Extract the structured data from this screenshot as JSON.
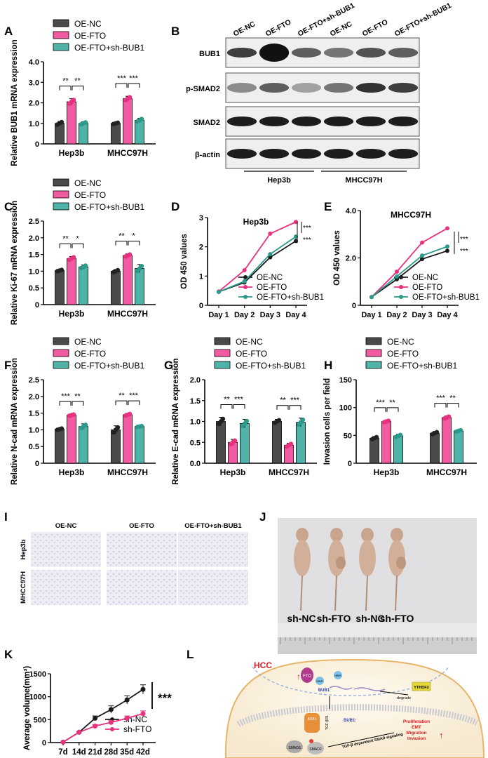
{
  "panels": {
    "A": {
      "letter": "A",
      "ylabel": "Relative BUB1 mRNA expression",
      "legend": [
        "OE-NC",
        "OE-FTO",
        "OE-FTO+sh-BUB1"
      ],
      "groups": [
        "Hep3b",
        "MHCC97H"
      ],
      "values": [
        [
          1.0,
          2.05,
          1.0
        ],
        [
          1.0,
          2.2,
          1.15
        ]
      ],
      "errors": [
        [
          0.1,
          0.15,
          0.08
        ],
        [
          0.05,
          0.12,
          0.1
        ]
      ],
      "ylim": [
        0,
        4
      ],
      "yticks": [
        "0",
        "1.0",
        "2.0",
        "3.0",
        "4.0"
      ],
      "sig": [
        [
          "**",
          "**"
        ],
        [
          "***",
          "***"
        ]
      ]
    },
    "B": {
      "letter": "B",
      "columns": [
        "OE-NC",
        "OE-FTO",
        "OE-FTO+sh-BUB1",
        "OE-NC",
        "OE-FTO",
        "OE-FTO+sh-BUB1"
      ],
      "rows": [
        "BUB1",
        "p-SMAD2",
        "SMAD2",
        "β-actin"
      ],
      "groups": [
        "Hep3b",
        "MHCC97H"
      ]
    },
    "C": {
      "letter": "C",
      "ylabel": "Relative Ki-67 mRNA expression",
      "legend": [
        "OE-NC",
        "OE-FTO",
        "OE-FTO+sh-BUB1"
      ],
      "groups": [
        "Hep3b",
        "MHCC97H"
      ],
      "values": [
        [
          1.02,
          1.38,
          1.13
        ],
        [
          1.0,
          1.47,
          1.08
        ]
      ],
      "errors": [
        [
          0.03,
          0.06,
          0.06
        ],
        [
          0.05,
          0.05,
          0.12
        ]
      ],
      "ylim": [
        0,
        2.5
      ],
      "yticks": [
        "0",
        "0.5",
        "1.0",
        "1.5",
        "2.0",
        "2.5"
      ],
      "sig": [
        [
          "**",
          "*"
        ],
        [
          "**",
          "*"
        ]
      ]
    },
    "D": {
      "letter": "D",
      "title": "Hep3b",
      "ylabel": "OD 450 values",
      "xticks": [
        "Day 1",
        "Day 2",
        "Day 3",
        "Day 4"
      ],
      "ylim": [
        0,
        3
      ],
      "yticks": [
        "0",
        "1",
        "2",
        "3"
      ],
      "series": [
        {
          "name": "OE-NC",
          "values": [
            0.46,
            0.78,
            1.64,
            2.2
          ]
        },
        {
          "name": "OE-FTO",
          "values": [
            0.47,
            1.2,
            2.45,
            2.85
          ]
        },
        {
          "name": "OE-FTO+sh-BUB1",
          "values": [
            0.46,
            0.82,
            1.75,
            2.35
          ]
        }
      ],
      "sig": [
        "***",
        "***"
      ]
    },
    "E": {
      "letter": "E",
      "title": "MHCC97H",
      "ylabel": "OD 450 values",
      "xticks": [
        "Day 1",
        "Day 2",
        "Day 3",
        "Day 4"
      ],
      "ylim": [
        0,
        4
      ],
      "yticks": [
        "0",
        "2.0",
        "4.0"
      ],
      "series": [
        {
          "name": "OE-NC",
          "values": [
            0.35,
            1.1,
            1.95,
            2.3
          ]
        },
        {
          "name": "OE-FTO",
          "values": [
            0.35,
            1.42,
            2.65,
            3.25
          ]
        },
        {
          "name": "OE-FTO+sh-BUB1",
          "values": [
            0.35,
            1.22,
            2.1,
            2.48
          ]
        }
      ],
      "sig": [
        "***",
        "***"
      ]
    },
    "F": {
      "letter": "F",
      "ylabel": "Relative N-cad mRNA expression",
      "legend": [
        "OE-NC",
        "OE-FTO",
        "OE-FTO+sh-BUB1"
      ],
      "groups": [
        "Hep3b",
        "MHCC97H"
      ],
      "values": [
        [
          1.02,
          1.44,
          1.1
        ],
        [
          1.0,
          1.45,
          1.1
        ]
      ],
      "errors": [
        [
          0.03,
          0.03,
          0.08
        ],
        [
          0.12,
          0.04,
          0.02
        ]
      ],
      "ylim": [
        0,
        2.5
      ],
      "yticks": [
        "0",
        "0.5",
        "1.0",
        "1.5",
        "2.0",
        "2.5"
      ],
      "sig": [
        [
          "***",
          "**"
        ],
        [
          "**",
          "***"
        ]
      ]
    },
    "G": {
      "letter": "G",
      "ylabel": "Relative E-cad mRNA expression",
      "legend": [
        "OE-NC",
        "OE-FTO",
        "OE-FTO+sh-BUB1"
      ],
      "groups": [
        "Hep3b",
        "MHCC97H"
      ],
      "values": [
        [
          1.0,
          0.5,
          0.95
        ],
        [
          1.0,
          0.43,
          0.98
        ]
      ],
      "errors": [
        [
          0.1,
          0.07,
          0.1
        ],
        [
          0.05,
          0.05,
          0.1
        ]
      ],
      "ylim": [
        0,
        2
      ],
      "yticks": [
        "0.0",
        "0.5",
        "1.0",
        "1.5",
        "2.0"
      ],
      "sig": [
        [
          "**",
          "***"
        ],
        [
          "**",
          "***"
        ]
      ]
    },
    "H": {
      "letter": "H",
      "ylabel": "Invasion cells per field",
      "legend": [
        "OE-NC",
        "OE-FTO",
        "OE-FTO+sh-BUB1"
      ],
      "groups": [
        "Hep3b",
        "MHCC97H"
      ],
      "values": [
        [
          45,
          75,
          49
        ],
        [
          54,
          82,
          58
        ]
      ],
      "errors": [
        [
          3,
          2,
          3
        ],
        [
          3,
          3,
          2
        ]
      ],
      "ylim": [
        0,
        150
      ],
      "yticks": [
        "0",
        "50",
        "100",
        "150"
      ],
      "sig": [
        [
          "***",
          "**"
        ],
        [
          "***",
          "**"
        ]
      ]
    },
    "I": {
      "letter": "I",
      "columns": [
        "OE-NC",
        "OE-FTO",
        "OE-FTO+sh-BUB1"
      ],
      "rows": [
        "Hep3b",
        "MHCC97H"
      ]
    },
    "J": {
      "letter": "J",
      "labels": [
        "sh-NC",
        "sh-FTO",
        "sh-NC",
        "sh-FTO"
      ]
    },
    "K": {
      "letter": "K",
      "ylabel": "Average volume(mm³)",
      "xticks": [
        "7d",
        "14d",
        "21d",
        "28d",
        "35d",
        "42d"
      ],
      "ylim": [
        0,
        1500
      ],
      "yticks": [
        "0",
        "500",
        "1000",
        "1500"
      ],
      "series": [
        {
          "name": "sh-NC",
          "values": [
            10,
            225,
            530,
            720,
            930,
            1160
          ]
        },
        {
          "name": "sh-FTO",
          "values": [
            10,
            225,
            360,
            440,
            530,
            630
          ]
        }
      ],
      "errors": [
        [
          0,
          10,
          50,
          80,
          90,
          100
        ],
        [
          0,
          10,
          30,
          40,
          50,
          60
        ]
      ],
      "sig": "***"
    },
    "L": {
      "letter": "L",
      "cell": "HCC",
      "labels": {
        "fto": "FTO",
        "m6a": "m6A",
        "bub1_mrna": "BUB1",
        "ythdf2": "YTHDF2",
        "degrade": "degrade",
        "bub1_protein": "BUB1",
        "bub1_up": "BUB1",
        "tgfbr1": "TGF-βR1",
        "smad3": "SMAD3",
        "smad2": "SMAD2",
        "pathway": "TGF-β dependent SMAD signaling",
        "outcome": [
          "Proliferation",
          "EMT",
          "Migration",
          "Invasion"
        ]
      }
    }
  },
  "colors": {
    "nc": "#4a4a4a",
    "fto": "#f25aa2",
    "sh": "#4fb3a9",
    "ncLine": "#1a1a1a",
    "ftoLine": "#e8317e",
    "shLine": "#2a9a8a",
    "accent": "#e01b24"
  }
}
